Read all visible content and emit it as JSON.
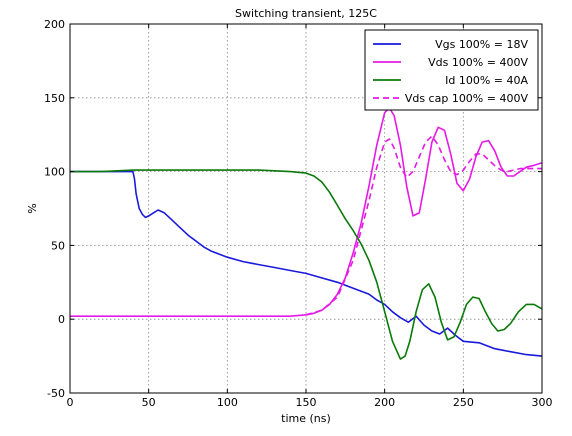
{
  "chart_data": {
    "type": "line",
    "title": "Switching transient, 125C",
    "xlabel": "time (ns)",
    "ylabel": "%",
    "xlim": [
      0,
      300
    ],
    "ylim": [
      -50,
      200
    ],
    "xticks": [
      0,
      50,
      100,
      150,
      200,
      250,
      300
    ],
    "yticks": [
      -50,
      0,
      50,
      100,
      150,
      200
    ],
    "grid": true,
    "legend_position": "top-right",
    "series": [
      {
        "name": "Vgs 100% = 18V",
        "color": "#1a1adc",
        "dash": "solid",
        "x": [
          0,
          10,
          20,
          30,
          40,
          41,
          42,
          44,
          46,
          48,
          50,
          53,
          56,
          60,
          65,
          70,
          75,
          80,
          85,
          90,
          95,
          100,
          110,
          120,
          130,
          140,
          150,
          160,
          170,
          180,
          190,
          195,
          200,
          205,
          210,
          215,
          220,
          225,
          230,
          235,
          240,
          245,
          250,
          260,
          270,
          280,
          290,
          300
        ],
        "y": [
          100,
          100,
          100,
          100,
          100,
          95,
          85,
          75,
          71,
          69,
          70,
          72,
          74,
          72,
          67,
          62,
          57,
          53,
          49,
          46,
          44,
          42,
          39,
          37,
          35,
          33,
          31,
          28,
          25,
          21,
          17,
          13,
          10,
          5,
          1,
          -2,
          2,
          -4,
          -8,
          -10,
          -6,
          -11,
          -15,
          -16,
          -20,
          -22,
          -24,
          -25
        ]
      },
      {
        "name": "Vds 100% = 400V",
        "color": "#e619e6",
        "dash": "solid",
        "x": [
          0,
          20,
          40,
          60,
          80,
          100,
          120,
          140,
          150,
          155,
          160,
          165,
          170,
          175,
          180,
          185,
          190,
          195,
          200,
          203,
          206,
          210,
          214,
          218,
          222,
          226,
          230,
          234,
          238,
          242,
          246,
          250,
          254,
          258,
          262,
          266,
          270,
          274,
          278,
          282,
          286,
          290,
          294,
          300
        ],
        "y": [
          2,
          2,
          2,
          2,
          2,
          2,
          2,
          2,
          3,
          4,
          6,
          10,
          17,
          28,
          45,
          65,
          90,
          118,
          140,
          143,
          138,
          118,
          90,
          70,
          72,
          95,
          120,
          130,
          128,
          112,
          92,
          87,
          95,
          110,
          120,
          121,
          114,
          103,
          97,
          97,
          100,
          103,
          104,
          106
        ]
      },
      {
        "name": "Id 100% = 40A",
        "color": "#0a7a0a",
        "dash": "solid",
        "x": [
          0,
          20,
          40,
          60,
          80,
          100,
          120,
          140,
          150,
          155,
          160,
          165,
          170,
          175,
          180,
          185,
          190,
          195,
          200,
          205,
          210,
          213,
          216,
          220,
          224,
          228,
          232,
          236,
          240,
          244,
          248,
          252,
          256,
          260,
          264,
          268,
          272,
          276,
          280,
          285,
          290,
          295,
          300
        ],
        "y": [
          100,
          100,
          101,
          101,
          101,
          101,
          101,
          100,
          99,
          97,
          93,
          86,
          77,
          68,
          60,
          51,
          40,
          25,
          5,
          -15,
          -27,
          -25,
          -15,
          5,
          20,
          24,
          15,
          -2,
          -14,
          -12,
          -2,
          10,
          15,
          14,
          5,
          -3,
          -8,
          -7,
          -3,
          5,
          10,
          10,
          7
        ]
      },
      {
        "name": "Vds cap 100% = 400V",
        "color": "#e619e6",
        "dash": "dashed",
        "x": [
          150,
          160,
          170,
          180,
          190,
          195,
          200,
          203,
          206,
          210,
          214,
          218,
          222,
          226,
          230,
          234,
          238,
          242,
          246,
          250,
          254,
          258,
          262,
          266,
          270,
          274,
          278,
          282,
          286,
          290,
          294,
          300
        ],
        "y": [
          3,
          6,
          15,
          40,
          80,
          103,
          120,
          122,
          116,
          103,
          96,
          100,
          110,
          120,
          124,
          118,
          108,
          100,
          98,
          101,
          107,
          112,
          112,
          108,
          104,
          101,
          100,
          101,
          102,
          102,
          102,
          102
        ]
      }
    ]
  }
}
